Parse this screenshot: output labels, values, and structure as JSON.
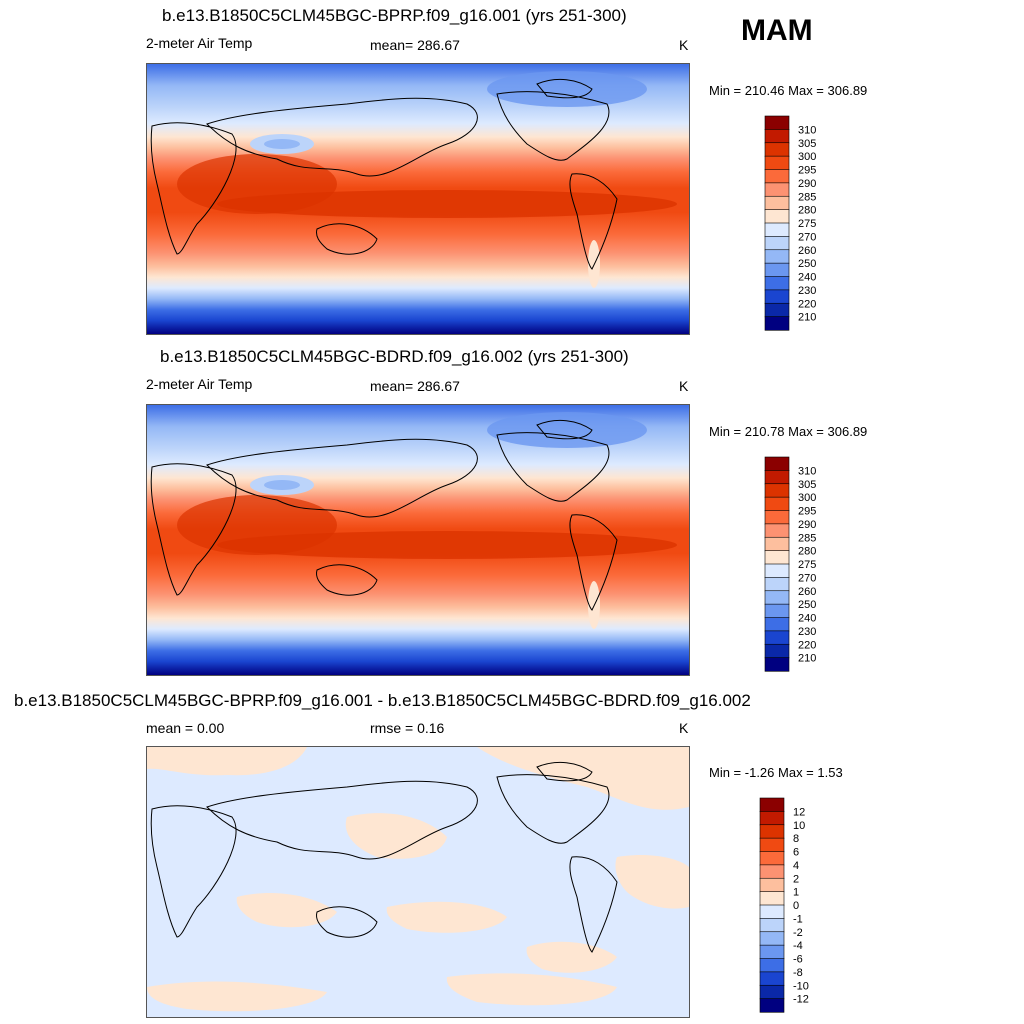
{
  "season": "MAM",
  "panels": [
    {
      "title": "b.e13.B1850C5CLM45BGC-BPRP.f09_g16.001 (yrs 251-300)",
      "left_label": "2-meter Air Temp",
      "center_label": "mean= 286.67",
      "units": "K",
      "minmax": "Min = 210.46 Max = 306.89",
      "kind": "absolute"
    },
    {
      "title": "b.e13.B1850C5CLM45BGC-BDRD.f09_g16.002 (yrs 251-300)",
      "left_label": "2-meter Air Temp",
      "center_label": "mean= 286.67",
      "units": "K",
      "minmax": "Min = 210.78 Max = 306.89",
      "kind": "absolute"
    },
    {
      "title": "b.e13.B1850C5CLM45BGC-BPRP.f09_g16.001 - b.e13.B1850C5CLM45BGC-BDRD.f09_g16.002",
      "left_label": "mean =   0.00",
      "center_label": "rmse =   0.16",
      "units": "K",
      "minmax": "Min =  -1.26 Max =   1.53",
      "kind": "difference"
    }
  ],
  "colorbars": {
    "absolute": {
      "labels": [
        "310",
        "305",
        "300",
        "295",
        "290",
        "285",
        "280",
        "275",
        "270",
        "260",
        "250",
        "240",
        "230",
        "220",
        "210"
      ],
      "colors": [
        "#8b0000",
        "#c21a00",
        "#dc3300",
        "#f04a12",
        "#fb6a3a",
        "#fc9272",
        "#fdbf9e",
        "#fee6d2",
        "#ddeaff",
        "#bcd4fa",
        "#94b8f6",
        "#6b97f0",
        "#3d6ee6",
        "#1a45d0",
        "#0a28a8",
        "#000080"
      ]
    },
    "difference": {
      "labels": [
        "12",
        "10",
        "8",
        "6",
        "4",
        "2",
        "1",
        "0",
        "-1",
        "-2",
        "-4",
        "-6",
        "-8",
        "-10",
        "-12"
      ],
      "colors": [
        "#8b0000",
        "#c21a00",
        "#dc3300",
        "#f04a12",
        "#fb6a3a",
        "#fc9272",
        "#fdbf9e",
        "#fee6d2",
        "#ddeaff",
        "#bcd4fa",
        "#94b8f6",
        "#6b97f0",
        "#3d6ee6",
        "#1a45d0",
        "#0a28a8",
        "#000080"
      ]
    }
  }
}
